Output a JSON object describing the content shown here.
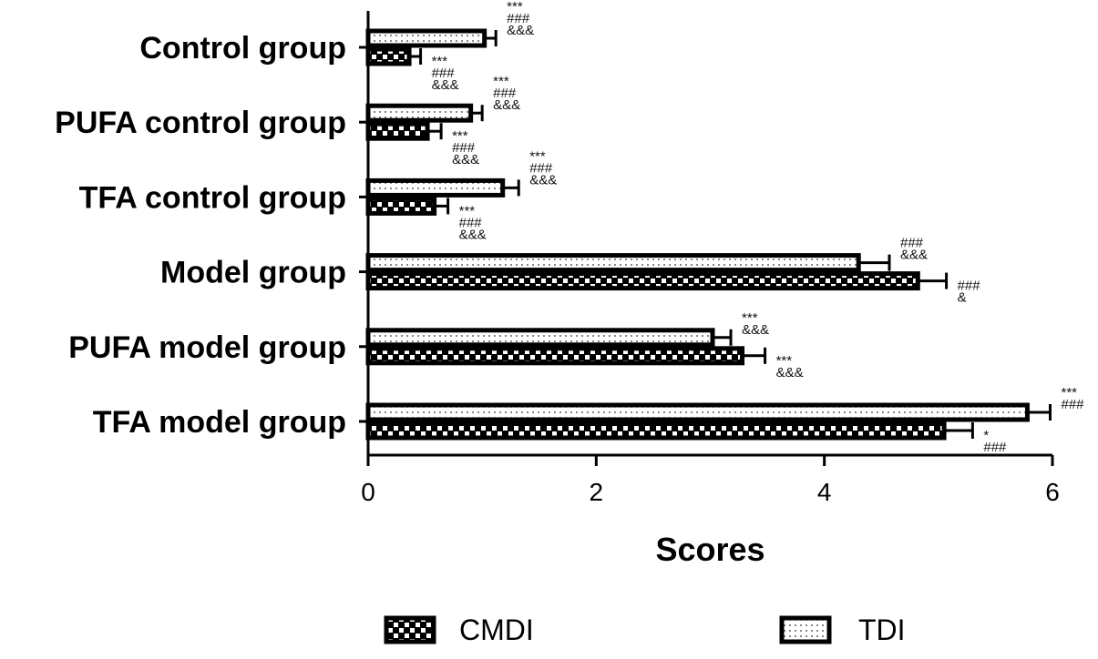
{
  "chart_data": {
    "type": "bar",
    "orientation": "horizontal",
    "xlabel": "Scores",
    "xlim": [
      0,
      6
    ],
    "xticks": [
      0,
      2,
      4,
      6
    ],
    "categories": [
      "Control group",
      "PUFA control group",
      "TFA control group",
      "Model group",
      "PUFA model group",
      "TFA model group"
    ],
    "series": [
      {
        "name": "TDI",
        "pattern": "dotted",
        "values": [
          1.02,
          0.9,
          1.18,
          4.3,
          3.02,
          5.78
        ],
        "errors": [
          0.1,
          0.1,
          0.14,
          0.27,
          0.16,
          0.2
        ],
        "annotations": [
          [
            "***",
            "###",
            "&&&"
          ],
          [
            "***",
            "###",
            "&&&"
          ],
          [
            "***",
            "###",
            "&&&"
          ],
          [
            "###",
            "&&&"
          ],
          [
            "***",
            "&&&"
          ],
          [
            "***",
            "###"
          ]
        ]
      },
      {
        "name": "CMDI",
        "pattern": "checkered",
        "values": [
          0.36,
          0.52,
          0.58,
          4.82,
          3.28,
          5.05
        ],
        "errors": [
          0.1,
          0.12,
          0.12,
          0.25,
          0.2,
          0.25
        ],
        "annotations": [
          [
            "***",
            "###",
            "&&&"
          ],
          [
            "***",
            "###",
            "&&&"
          ],
          [
            "***",
            "###",
            "&&&"
          ],
          [
            "###",
            "&"
          ],
          [
            "***",
            "&&&"
          ],
          [
            "*",
            "###"
          ]
        ]
      }
    ],
    "legend": {
      "placement": "bottom",
      "order": [
        "CMDI",
        "TDI"
      ]
    },
    "grid": false,
    "colors": {
      "bar_stroke": "#000000",
      "bar_fill": "#ffffff",
      "pattern": "#000000"
    }
  }
}
